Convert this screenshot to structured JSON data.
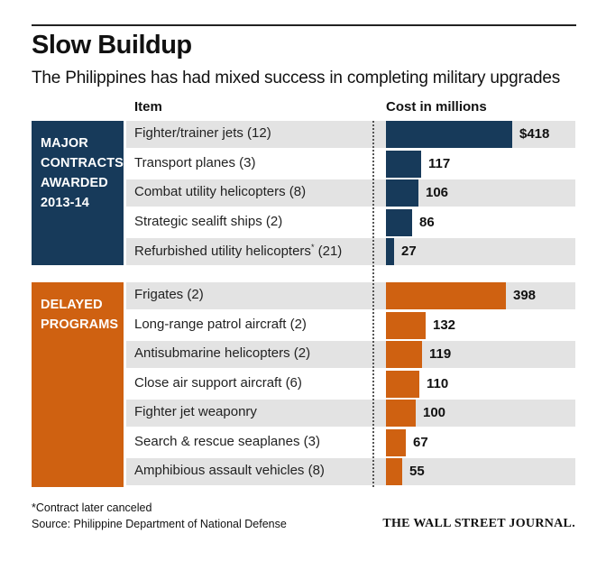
{
  "title": "Slow Buildup",
  "subtitle": "The Philippines has had mixed success in completing military upgrades",
  "headers": {
    "item": "Item",
    "cost": "Cost in millions"
  },
  "groups": {
    "major": {
      "label_lines": [
        "MAJOR",
        "CONTRACTS",
        "AWARDED",
        "2013-14"
      ],
      "color": "#173a5a"
    },
    "delayed": {
      "label_lines": [
        "DELAYED",
        "PROGRAMS"
      ],
      "color": "#cf6111"
    }
  },
  "chart_data": {
    "type": "bar",
    "orientation": "horizontal",
    "unit": "Cost in millions",
    "series": [
      {
        "group": "major",
        "color": "#173a5a",
        "items": [
          {
            "label": "Fighter/trainer jets (12)",
            "value": 418,
            "display": "$418"
          },
          {
            "label": "Transport planes (3)",
            "value": 117,
            "display": "117"
          },
          {
            "label": "Combat utility helicopters (8)",
            "value": 106,
            "display": "106"
          },
          {
            "label": "Strategic sealift ships (2)",
            "value": 86,
            "display": "86"
          },
          {
            "label": "Refurbished utility helicopters",
            "label_mark": "*",
            "label_suffix": " (21)",
            "value": 27,
            "display": "27"
          }
        ]
      },
      {
        "group": "delayed",
        "color": "#cf6111",
        "items": [
          {
            "label": "Frigates (2)",
            "value": 398,
            "display": "398"
          },
          {
            "label": "Long-range patrol aircraft (2)",
            "value": 132,
            "display": "132"
          },
          {
            "label": "Antisubmarine helicopters (2)",
            "value": 119,
            "display": "119"
          },
          {
            "label": "Close air support aircraft (6)",
            "value": 110,
            "display": "110"
          },
          {
            "label": "Fighter jet weaponry",
            "value": 100,
            "display": "100"
          },
          {
            "label": "Search & rescue seaplanes (3)",
            "value": 67,
            "display": "67"
          },
          {
            "label": "Amphibious assault vehicles (8)",
            "value": 55,
            "display": "55"
          }
        ]
      }
    ]
  },
  "footnote": "*Contract later canceled",
  "source": "Source: Philippine Department of National Defense",
  "credit": "THE WALL STREET JOURNAL."
}
